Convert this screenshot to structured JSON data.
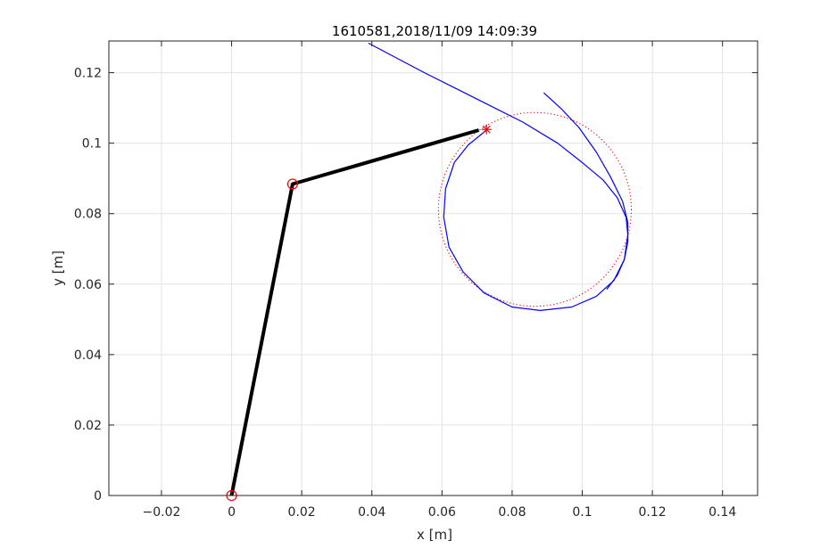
{
  "chart_data": {
    "type": "line",
    "title": "1610581,2018/11/09 14:09:39",
    "xlabel": "x [m]",
    "ylabel": "y [m]",
    "xlim": [
      -0.035,
      0.15
    ],
    "ylim": [
      0,
      0.129
    ],
    "grid": true,
    "xticks": [
      -0.02,
      0,
      0.02,
      0.04,
      0.06,
      0.08,
      0.1,
      0.12,
      0.14
    ],
    "xtick_labels": [
      "−0.02",
      "0",
      "0.02",
      "0.04",
      "0.06",
      "0.08",
      "0.1",
      "0.12",
      "0.14"
    ],
    "yticks": [
      0,
      0.02,
      0.04,
      0.06,
      0.08,
      0.1,
      0.12
    ],
    "ytick_labels": [
      "0",
      "0.02",
      "0.04",
      "0.06",
      "0.08",
      "0.1",
      "0.12"
    ],
    "series": [
      {
        "role": "arm-links",
        "color": "#000000",
        "x": [
          0,
          0.0174,
          0.0705
        ],
        "y": [
          0,
          0.0884,
          0.1037
        ]
      },
      {
        "role": "joints",
        "color": "#ff0000",
        "marker": "circle",
        "x": [
          0,
          0.0174
        ],
        "y": [
          0,
          0.0884
        ]
      },
      {
        "role": "end-effector-target",
        "color": "#ff0000",
        "marker": "asterisk",
        "x": [
          0.0727
        ],
        "y": [
          0.1039
        ]
      },
      {
        "role": "reference-circle",
        "color": "#ff0000",
        "style": "dotted",
        "center": [
          0.0865,
          0.0812
        ],
        "radius": 0.0275
      },
      {
        "role": "trajectory-1",
        "color": "#0000ff",
        "x": [
          0.039,
          0.055,
          0.07,
          0.083,
          0.093,
          0.1,
          0.106,
          0.11,
          0.1125,
          0.113,
          0.112,
          0.109,
          0.104,
          0.097,
          0.088,
          0.08,
          0.072,
          0.066,
          0.062,
          0.0605,
          0.061,
          0.0635,
          0.0675,
          0.0727
        ],
        "y": [
          0.1284,
          0.12,
          0.1125,
          0.106,
          0.1,
          0.0945,
          0.0895,
          0.0845,
          0.079,
          0.074,
          0.067,
          0.061,
          0.0565,
          0.0535,
          0.0525,
          0.0535,
          0.0575,
          0.0635,
          0.0705,
          0.079,
          0.087,
          0.0945,
          0.0995,
          0.1037
        ]
      },
      {
        "role": "trajectory-2",
        "color": "#0000ff",
        "x": [
          0.089,
          0.094,
          0.099,
          0.104,
          0.108,
          0.1115,
          0.113,
          0.113,
          0.112,
          0.11,
          0.107
        ],
        "y": [
          0.1143,
          0.1098,
          0.1045,
          0.0975,
          0.0905,
          0.0835,
          0.0775,
          0.072,
          0.067,
          0.0625,
          0.0585
        ]
      }
    ]
  }
}
